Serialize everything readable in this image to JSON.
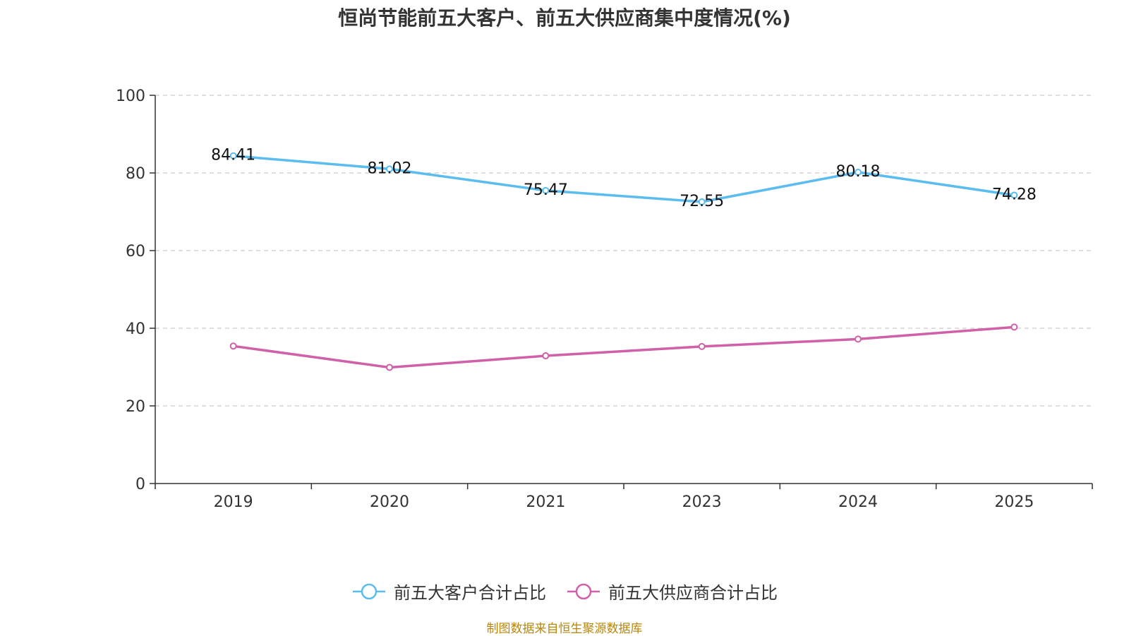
{
  "chart_data": {
    "type": "line",
    "title": "恒尚节能前五大客户、前五大供应商集中度情况(%)",
    "categories": [
      "2019",
      "2020",
      "2021",
      "2023",
      "2024",
      "2025"
    ],
    "ylim": [
      0,
      100
    ],
    "yticks": [
      0,
      20,
      40,
      60,
      80,
      100
    ],
    "grid": true,
    "legend_position": "bottom-center",
    "series": [
      {
        "name": "前五大客户合计占比",
        "color": "#5bbcf0",
        "values": [
          84.41,
          81.02,
          75.47,
          72.55,
          80.18,
          74.28
        ],
        "labels": [
          "84.41",
          "81.02",
          "75.47",
          "72.55",
          "80.18",
          "74.28"
        ]
      },
      {
        "name": "前五大供应商合计占比",
        "color": "#d060a8",
        "values": [
          35.4,
          29.9,
          32.9,
          35.3,
          37.2,
          40.3
        ],
        "labels": null
      }
    ]
  },
  "source_note": "制图数据来自恒生聚源数据库"
}
